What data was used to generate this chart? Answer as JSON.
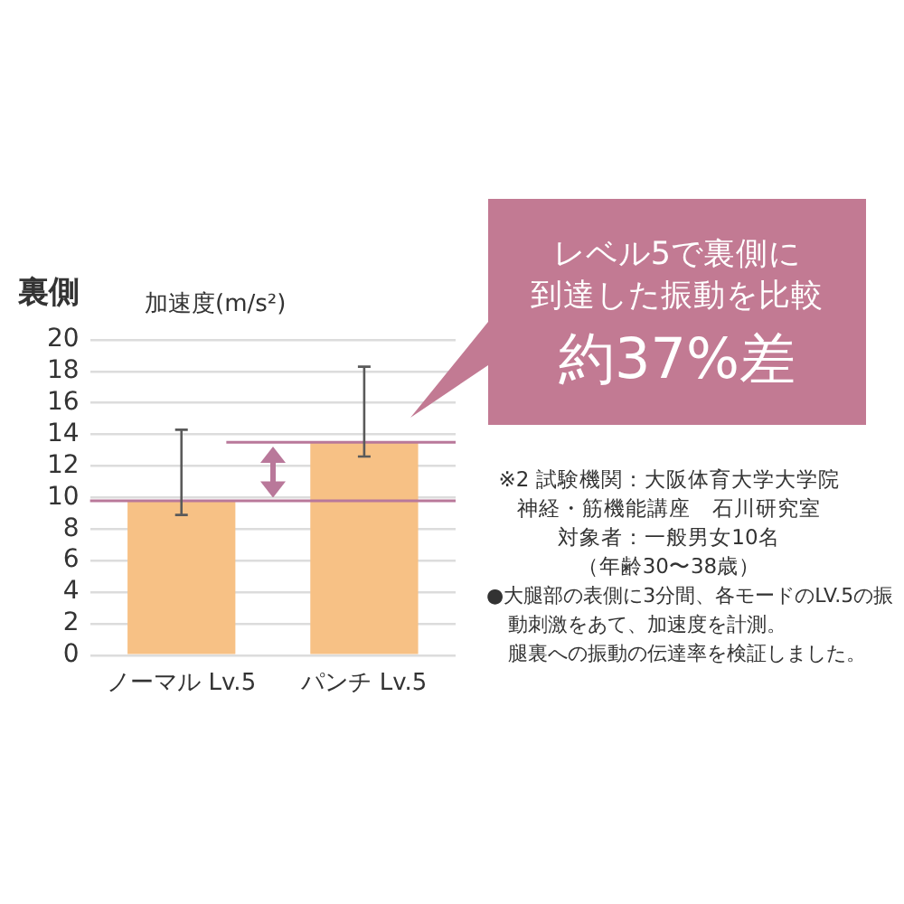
{
  "chart_data": {
    "type": "bar",
    "title": "裏側",
    "ylabel": "加速度(m/s²)",
    "categories": [
      "ノーマル Lv.5",
      "パンチ Lv.5"
    ],
    "values": [
      9.8,
      13.5
    ],
    "color": "#f7c185",
    "errors": [
      [
        8.9,
        14.3
      ],
      [
        12.6,
        18.3
      ]
    ],
    "ylim": [
      0,
      20
    ],
    "yticks": [
      0,
      2,
      4,
      6,
      8,
      10,
      12,
      14,
      16,
      18,
      20
    ],
    "grid": "y",
    "ref_lines": [
      {
        "axis": "y",
        "value": 9.8,
        "color": "#b9789a"
      },
      {
        "axis": "y",
        "value": 13.5,
        "color": "#b9789a"
      }
    ],
    "annotations": [
      "レベル5で裏側に",
      "到達した振動を比較",
      "約37%差",
      "※2 試験機関：大阪体育大学大学院",
      "神経・筋機能講座　石川研究室",
      "対象者：一般男女10名",
      "（年齢30〜38歳）",
      "●大腿部の表側に3分間、各モードのLV.5の振動刺激をあて、加速度を計測。",
      "腿裏への振動の伝達率を検証しました。"
    ]
  }
}
